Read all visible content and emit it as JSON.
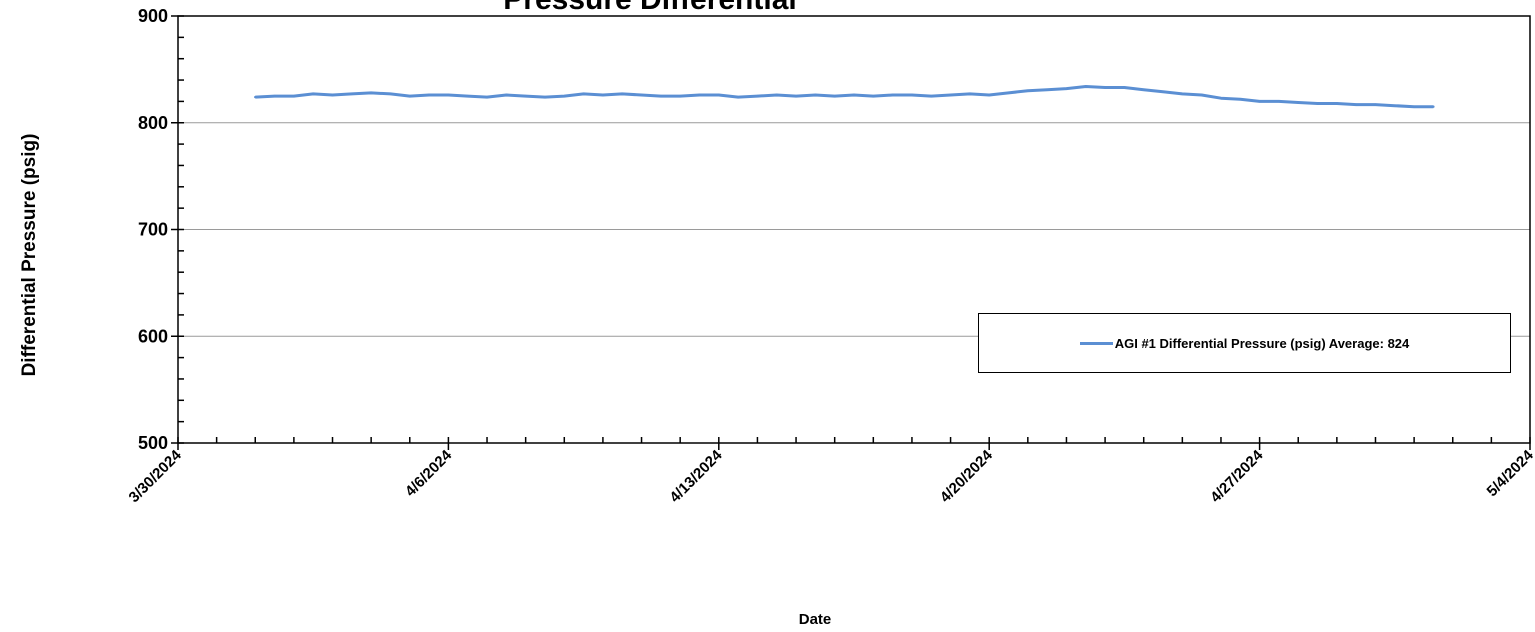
{
  "chart_data": {
    "type": "line",
    "title": "Pressure Differential",
    "xlabel": "Date",
    "ylabel": "Differential Pressure (psig)",
    "ylim": [
      500,
      900
    ],
    "yticks": [
      500,
      600,
      700,
      800,
      900
    ],
    "xlim": [
      "3/30/2024",
      "5/4/2024"
    ],
    "xtick_labels": [
      "3/30/2024",
      "4/6/2024",
      "4/13/2024",
      "4/20/2024",
      "4/27/2024",
      "5/4/2024"
    ],
    "grid": "horizontal",
    "legend_position": "right",
    "series": [
      {
        "name": "AGI #1 Differential Pressure (psig) Average: 824",
        "color": "#5b8fd3",
        "x": [
          "4/1/2024",
          "4/1/2024 12:00",
          "4/2/2024",
          "4/2/2024 12:00",
          "4/3/2024",
          "4/3/2024 12:00",
          "4/4/2024",
          "4/4/2024 12:00",
          "4/5/2024",
          "4/5/2024 12:00",
          "4/6/2024",
          "4/6/2024 12:00",
          "4/7/2024",
          "4/7/2024 12:00",
          "4/8/2024",
          "4/8/2024 12:00",
          "4/9/2024",
          "4/9/2024 12:00",
          "4/10/2024",
          "4/10/2024 12:00",
          "4/11/2024",
          "4/11/2024 12:00",
          "4/12/2024",
          "4/12/2024 12:00",
          "4/13/2024",
          "4/13/2024 12:00",
          "4/14/2024",
          "4/14/2024 12:00",
          "4/15/2024",
          "4/15/2024 12:00",
          "4/16/2024",
          "4/16/2024 12:00",
          "4/17/2024",
          "4/17/2024 12:00",
          "4/18/2024",
          "4/18/2024 12:00",
          "4/19/2024",
          "4/19/2024 12:00",
          "4/20/2024",
          "4/20/2024 12:00",
          "4/21/2024",
          "4/21/2024 12:00",
          "4/22/2024",
          "4/22/2024 12:00",
          "4/23/2024",
          "4/23/2024 12:00",
          "4/24/2024",
          "4/24/2024 12:00",
          "4/25/2024",
          "4/25/2024 12:00",
          "4/26/2024",
          "4/26/2024 12:00",
          "4/27/2024",
          "4/27/2024 12:00",
          "4/28/2024",
          "4/28/2024 12:00",
          "4/29/2024",
          "4/29/2024 12:00",
          "4/30/2024",
          "4/30/2024 12:00",
          "5/1/2024",
          "5/1/2024 12:00"
        ],
        "y": [
          824,
          825,
          825,
          827,
          826,
          827,
          828,
          827,
          825,
          826,
          826,
          825,
          824,
          826,
          825,
          824,
          825,
          827,
          826,
          827,
          826,
          825,
          825,
          826,
          826,
          824,
          825,
          826,
          825,
          826,
          825,
          826,
          825,
          826,
          826,
          825,
          826,
          827,
          826,
          828,
          830,
          831,
          832,
          834,
          833,
          833,
          831,
          829,
          827,
          826,
          823,
          822,
          820,
          820,
          819,
          818,
          818,
          817,
          817,
          816,
          815,
          815
        ]
      }
    ]
  }
}
